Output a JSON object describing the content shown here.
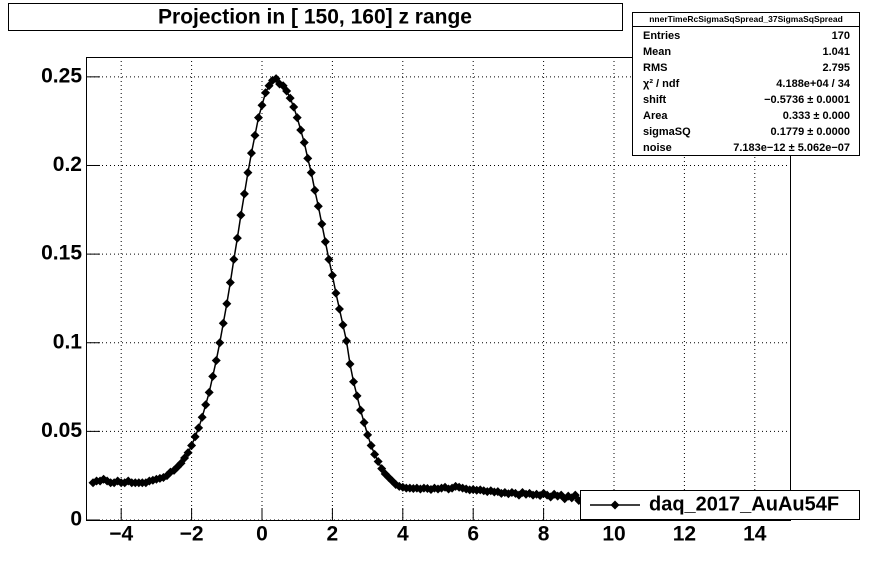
{
  "chart_data": {
    "type": "scatter",
    "title": "Projection in [ 150, 160] z range",
    "xlim": [
      -5,
      15
    ],
    "ylim": [
      0,
      0.2612
    ],
    "xticks": [
      {
        "value": -4,
        "label": "−4"
      },
      {
        "value": -2,
        "label": "−2"
      },
      0,
      2,
      4,
      6,
      8,
      10,
      12,
      14
    ],
    "yticks": [
      0,
      0.05,
      0.1,
      0.15,
      0.2,
      0.25
    ],
    "grid": true,
    "legend": "lower right",
    "series": [
      {
        "name": "daq_2017_AuAu54F",
        "color": "#000000",
        "x": [
          -4.8,
          -4.7,
          -4.6,
          -4.5,
          -4.4,
          -4.3,
          -4.2,
          -4.1,
          -4.0,
          -3.9,
          -3.8,
          -3.7,
          -3.6,
          -3.5,
          -3.4,
          -3.3,
          -3.2,
          -3.1,
          -3.0,
          -2.9,
          -2.8,
          -2.7,
          -2.6,
          -2.5,
          -2.4,
          -2.3,
          -2.2,
          -2.1,
          -2.0,
          -1.9,
          -1.8,
          -1.7,
          -1.6,
          -1.5,
          -1.4,
          -1.3,
          -1.2,
          -1.1,
          -1.0,
          -0.9,
          -0.8,
          -0.7,
          -0.6,
          -0.5,
          -0.4,
          -0.3,
          -0.2,
          -0.1,
          0.0,
          0.1,
          0.2,
          0.3,
          0.4,
          0.5,
          0.6,
          0.7,
          0.8,
          0.9,
          1.0,
          1.1,
          1.2,
          1.3,
          1.4,
          1.5,
          1.6,
          1.7,
          1.8,
          1.9,
          2.0,
          2.1,
          2.2,
          2.3,
          2.4,
          2.5,
          2.6,
          2.7,
          2.8,
          2.9,
          3.0,
          3.1,
          3.2,
          3.3,
          3.4,
          3.5,
          3.6,
          3.7,
          3.8,
          3.9,
          4.0,
          4.1,
          4.2,
          4.3,
          4.4,
          4.5,
          4.6,
          4.7,
          4.8,
          4.9,
          5.0,
          5.1,
          5.2,
          5.3,
          5.4,
          5.5,
          5.6,
          5.7,
          5.8,
          5.9,
          6.0,
          6.1,
          6.2,
          6.3,
          6.4,
          6.5,
          6.6,
          6.7,
          6.8,
          6.9,
          7.0,
          7.1,
          7.2,
          7.3,
          7.4,
          7.5,
          7.6,
          7.7,
          7.8,
          7.9,
          8.0,
          8.1,
          8.2,
          8.3,
          8.4,
          8.5,
          8.6,
          8.7,
          8.8,
          8.9,
          9.0
        ],
        "values": [
          0.021,
          0.022,
          0.022,
          0.023,
          0.022,
          0.021,
          0.021,
          0.022,
          0.021,
          0.021,
          0.022,
          0.021,
          0.021,
          0.021,
          0.021,
          0.021,
          0.022,
          0.0224,
          0.023,
          0.0235,
          0.024,
          0.025,
          0.027,
          0.028,
          0.03,
          0.032,
          0.035,
          0.038,
          0.042,
          0.047,
          0.052,
          0.058,
          0.065,
          0.072,
          0.081,
          0.09,
          0.1,
          0.111,
          0.122,
          0.134,
          0.147,
          0.159,
          0.172,
          0.184,
          0.196,
          0.207,
          0.217,
          0.227,
          0.234,
          0.241,
          0.245,
          0.248,
          0.249,
          0.246,
          0.245,
          0.242,
          0.238,
          0.233,
          0.227,
          0.22,
          0.213,
          0.204,
          0.196,
          0.186,
          0.177,
          0.167,
          0.157,
          0.147,
          0.138,
          0.128,
          0.119,
          0.11,
          0.101,
          0.088,
          0.078,
          0.07,
          0.062,
          0.055,
          0.048,
          0.042,
          0.037,
          0.033,
          0.029,
          0.026,
          0.024,
          0.022,
          0.02,
          0.019,
          0.0185,
          0.018,
          0.018,
          0.0178,
          0.018,
          0.0175,
          0.018,
          0.0178,
          0.0172,
          0.018,
          0.0175,
          0.018,
          0.0185,
          0.0175,
          0.018,
          0.019,
          0.0185,
          0.018,
          0.0175,
          0.017,
          0.0172,
          0.0168,
          0.017,
          0.0165,
          0.016,
          0.0165,
          0.0158,
          0.016,
          0.015,
          0.0155,
          0.0148,
          0.0155,
          0.015,
          0.014,
          0.0155,
          0.0145,
          0.015,
          0.014,
          0.0145,
          0.0138,
          0.015,
          0.014,
          0.013,
          0.0145,
          0.0135,
          0.014,
          0.012,
          0.0135,
          0.0125,
          0.014,
          0.011
        ]
      }
    ],
    "stats": {
      "title": "nnerTimeRcSigmaSqSpread_37SigmaSqSpread",
      "rows": [
        [
          "Entries",
          "170"
        ],
        [
          "Mean",
          "1.041"
        ],
        [
          "RMS",
          "2.795"
        ],
        [
          "χ² / ndf",
          "4.188e+04 / 34"
        ],
        [
          "shift",
          "−0.5736 ± 0.0001"
        ],
        [
          "Area",
          "0.333 ± 0.000"
        ],
        [
          "sigmaSQ",
          "0.1779 ± 0.0000"
        ],
        [
          "noise",
          "7.183e−12 ± 5.062e−07"
        ]
      ]
    }
  }
}
